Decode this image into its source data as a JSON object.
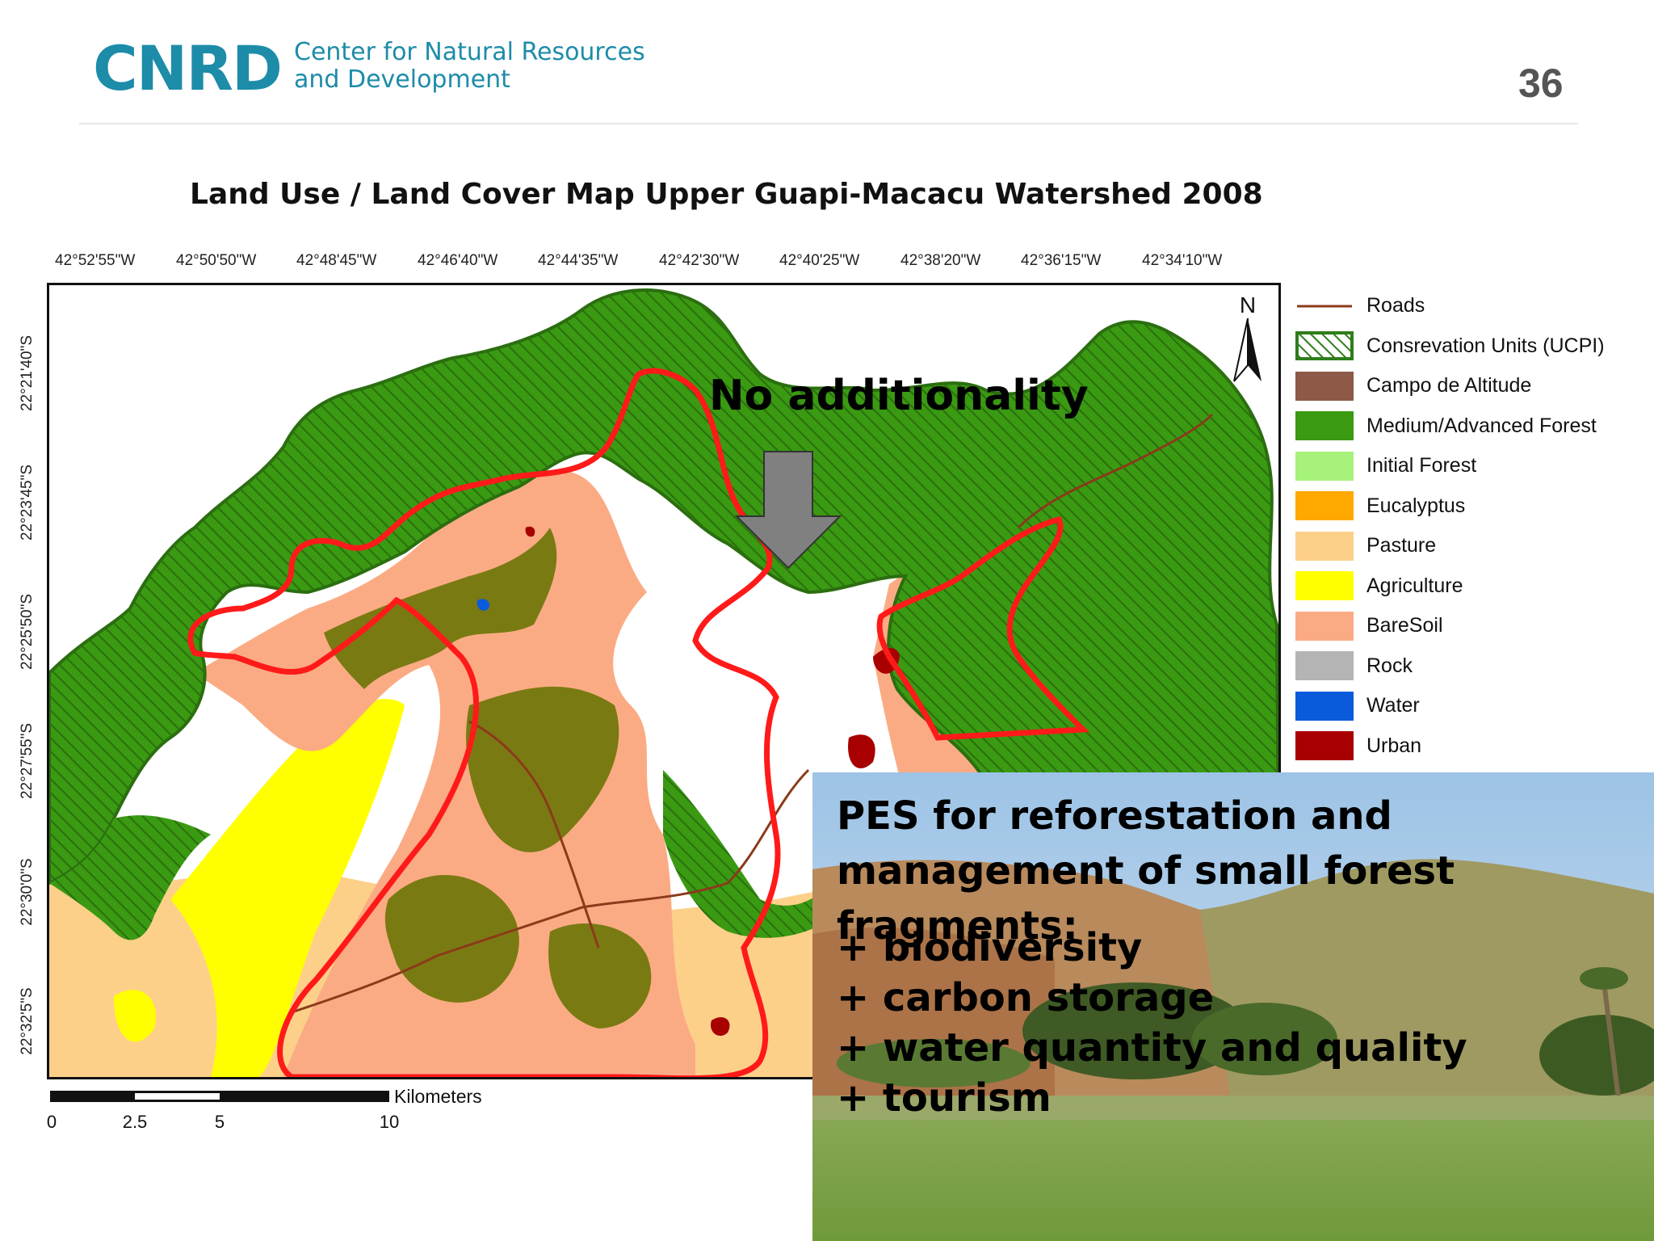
{
  "header": {
    "logo_text": "CNRD",
    "org_line1": "Center for Natural Resources",
    "org_line2": "and Development",
    "slide_number": "36"
  },
  "map": {
    "title": "Land Use / Land Cover Map Upper Guapi-Macacu Watershed 2008",
    "longitude_labels": [
      "42°52'55\"W",
      "42°50'50\"W",
      "42°48'45\"W",
      "42°46'40\"W",
      "42°44'35\"W",
      "42°42'30\"W",
      "42°40'25\"W",
      "42°38'20\"W",
      "42°36'15\"W",
      "42°34'10\"W"
    ],
    "latitude_labels": [
      "22°21'40\"S",
      "22°23'45\"S",
      "22°25'50\"S",
      "22°27'55\"S",
      "22°30'0\"S",
      "22°32'5\"S"
    ],
    "north_label": "N",
    "annotation": "No additionality",
    "scale_unit": "Kilometers",
    "scale_ticks": [
      "0",
      "2.5",
      "5",
      "10"
    ],
    "legend": [
      {
        "label": "Roads",
        "color": "#8b3a1a",
        "type": "line"
      },
      {
        "label": "Consrevation Units (UCPI)",
        "color": "#2e7d1a",
        "type": "hatch"
      },
      {
        "label": "Campo de Altitude",
        "color": "#8c5a46",
        "type": "fill"
      },
      {
        "label": "Medium/Advanced Forest",
        "color": "#3a9a12",
        "type": "fill"
      },
      {
        "label": "Initial Forest",
        "color": "#a6f27a",
        "type": "fill"
      },
      {
        "label": "Eucalyptus",
        "color": "#ffa800",
        "type": "fill"
      },
      {
        "label": "Pasture",
        "color": "#fdd08a",
        "type": "fill"
      },
      {
        "label": "Agriculture",
        "color": "#ffff00",
        "type": "fill"
      },
      {
        "label": "BareSoil",
        "color": "#fbab84",
        "type": "fill"
      },
      {
        "label": "Rock",
        "color": "#b4b4b4",
        "type": "fill"
      },
      {
        "label": "Water",
        "color": "#0a5adc",
        "type": "fill"
      },
      {
        "label": "Urban",
        "color": "#a80000",
        "type": "fill"
      }
    ]
  },
  "pes": {
    "title": "PES for reforestation and management of small forest fragments:",
    "benefits": [
      "+ biodiversity",
      "+ carbon storage",
      "+ water quantity and quality",
      "+ tourism"
    ]
  }
}
